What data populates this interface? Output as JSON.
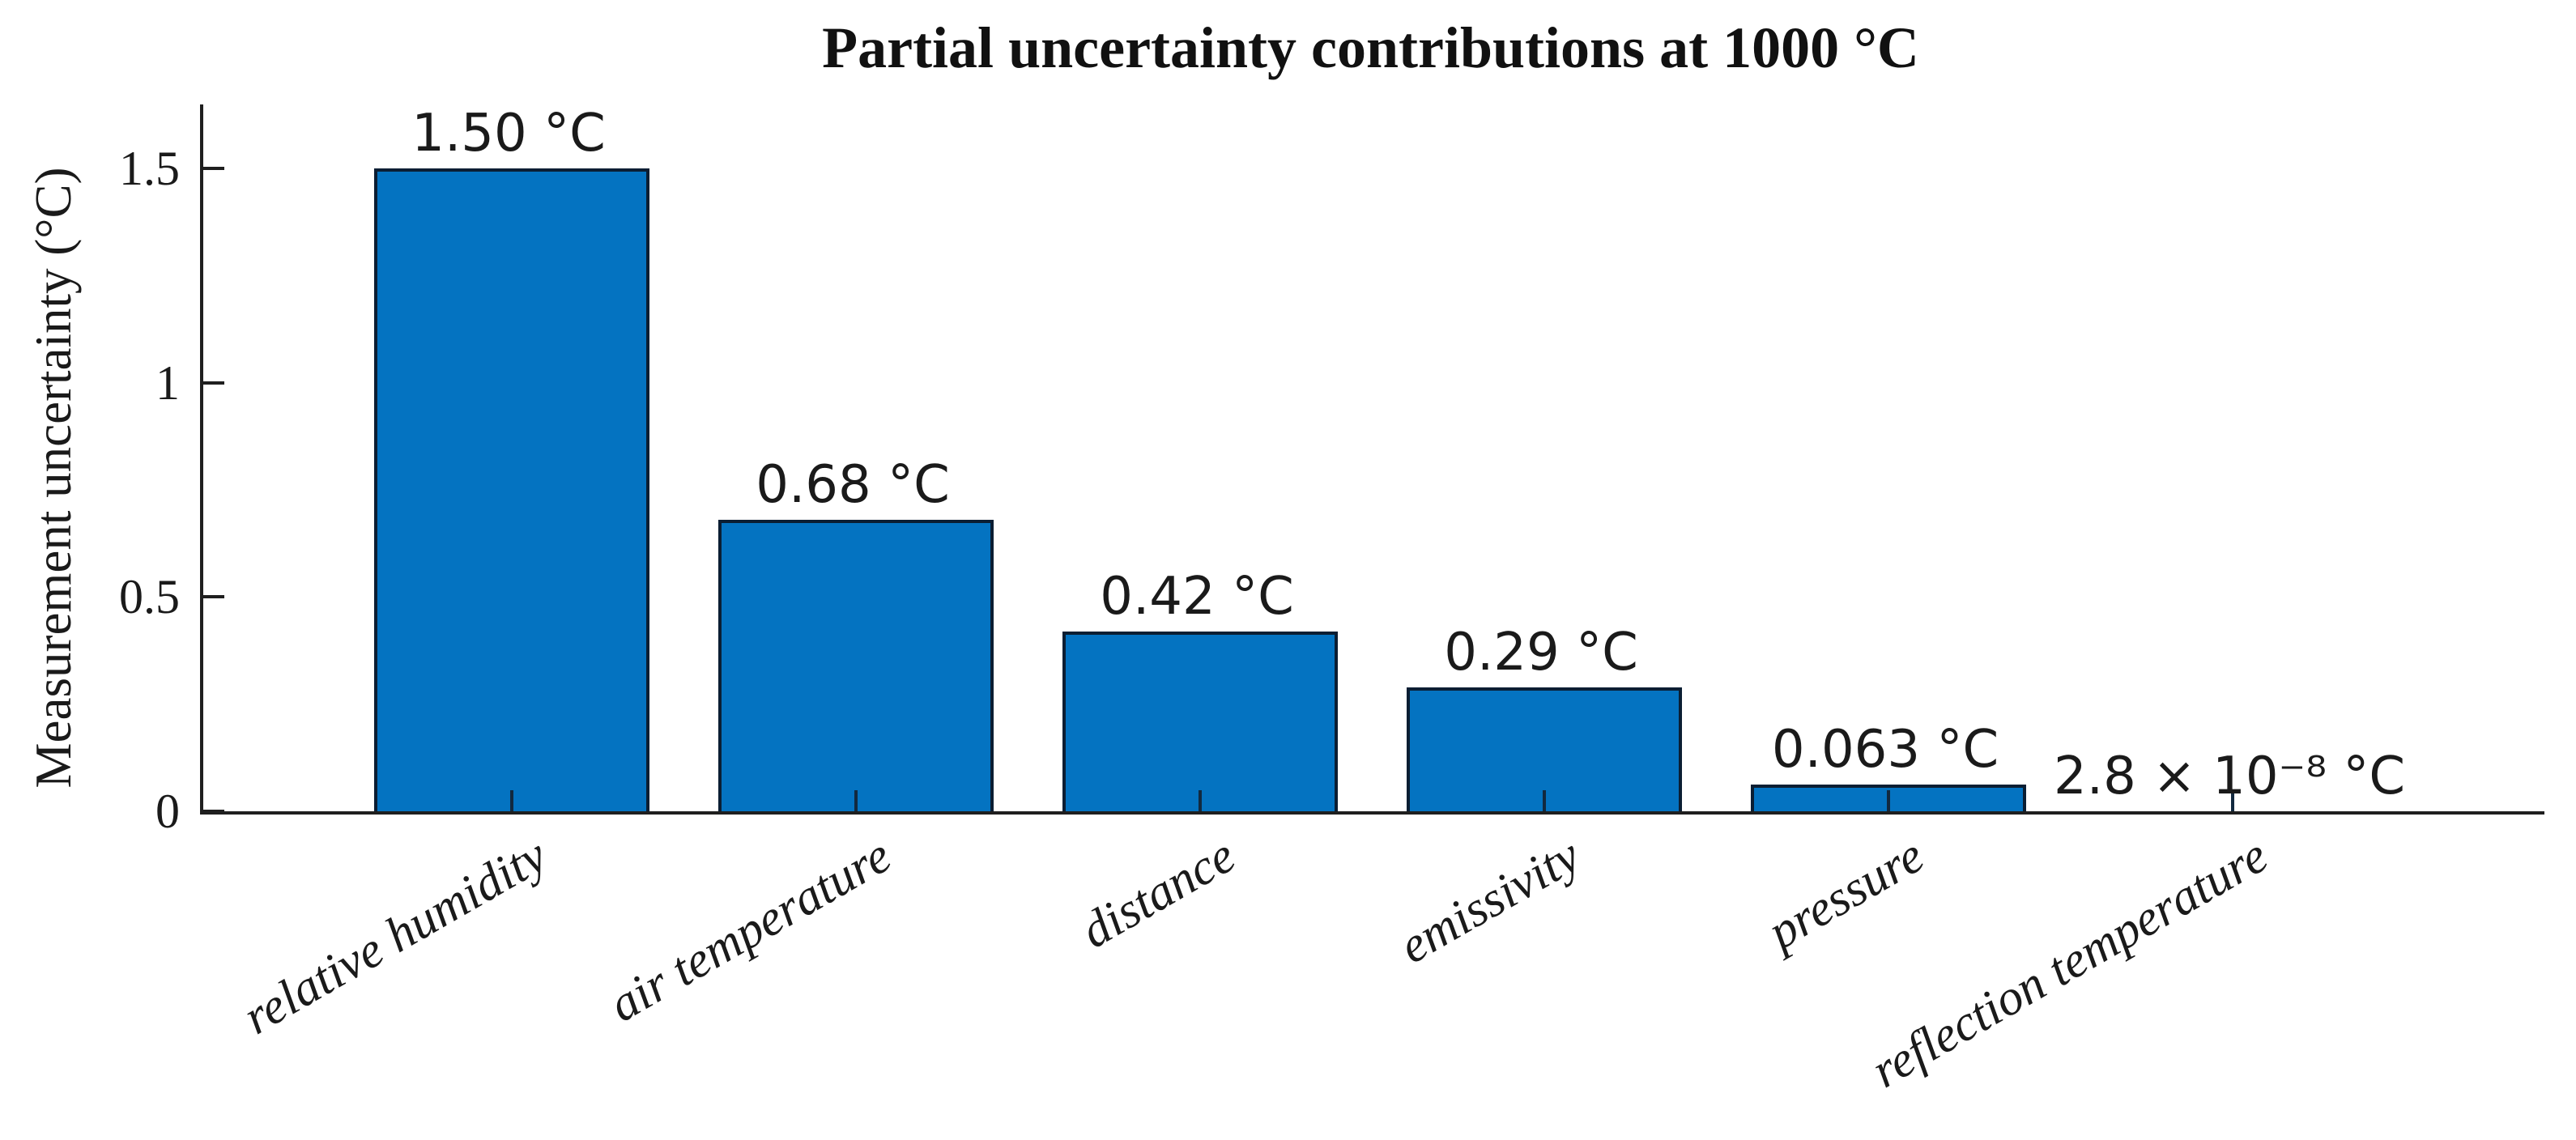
{
  "figure": {
    "background": "#ffffff"
  },
  "chart_data": {
    "type": "bar",
    "title": "Partial uncertainty contributions at 1000 °C",
    "ylabel": "Measurement uncertainty (°C)",
    "xlabel": "",
    "categories": [
      "relative humidity",
      "air temperature",
      "distance",
      "emissivity",
      "pressure",
      "reflection temperature"
    ],
    "values": [
      1.5,
      0.68,
      0.42,
      0.29,
      0.063,
      2.8e-08
    ],
    "value_labels": [
      "1.50 °C",
      "0.68 °C",
      "0.42 °C",
      "0.29 °C",
      "0.063 °C",
      "2.8 × 10⁻⁸ °C"
    ],
    "yticks": [
      0,
      0.5,
      1,
      1.5
    ],
    "ytick_labels": [
      "0",
      "0.5",
      "1",
      "1.5"
    ],
    "ylim": [
      0,
      1.65
    ],
    "grid": false,
    "legend": null,
    "bar_color": "#0473C1",
    "bar_edge_color": "#0B1E33",
    "axis_color": "#1f1f1f",
    "xtick_label_rotation_deg": -30,
    "xtick_label_style": "italic serif",
    "value_label_style": "sans-serif"
  }
}
